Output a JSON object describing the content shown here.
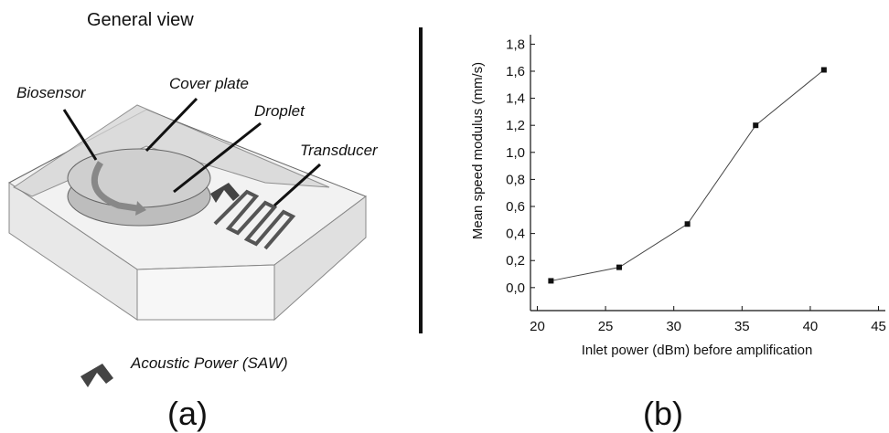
{
  "diagram": {
    "title": "General view",
    "labels": [
      "Biosensor",
      "Cover plate",
      "Droplet",
      "Transducer"
    ],
    "legend": "Acoustic Power (SAW)",
    "panel_label": "(a)"
  },
  "chart_data": {
    "type": "line",
    "panel_label": "(b)",
    "x_label": "Inlet power (dBm) before amplification",
    "y_label": "Mean speed modulus (mm/s)",
    "x": [
      21,
      26,
      31,
      36,
      41
    ],
    "series": [
      {
        "values": [
          0.05,
          0.15,
          0.47,
          1.2,
          1.61
        ],
        "color": "#444444"
      }
    ],
    "xlim": [
      19.5,
      45.5
    ],
    "xticks": [
      20,
      25,
      30,
      35,
      40,
      45
    ],
    "ylim": [
      -0.17,
      1.87
    ],
    "yticks": [
      {
        "value": 0,
        "label": "0,0"
      },
      {
        "value": 0.2,
        "label": "0,2"
      },
      {
        "value": 0.4,
        "label": "0,4"
      },
      {
        "value": 0.6,
        "label": "0,6"
      },
      {
        "value": 0.8,
        "label": "0,8"
      },
      {
        "value": 1,
        "label": "1,0"
      },
      {
        "value": 1.2,
        "label": "1,2"
      },
      {
        "value": 1.4,
        "label": "1,4"
      },
      {
        "value": 1.6,
        "label": "1,6"
      },
      {
        "value": 1.8,
        "label": "1,8"
      }
    ]
  }
}
